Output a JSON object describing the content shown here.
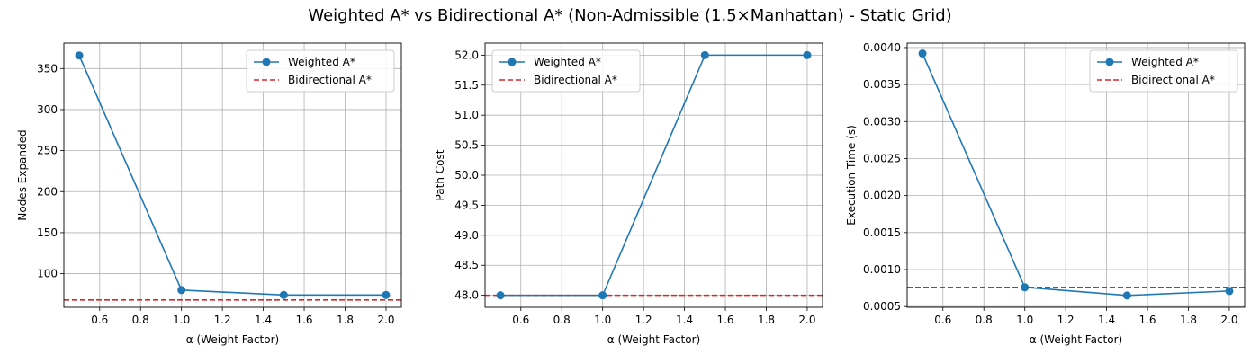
{
  "figure": {
    "title": "Weighted A* vs Bidirectional A* (Non-Admissible (1.5×Manhattan) - Static Grid)"
  },
  "colors": {
    "weighted": "#1f77b4",
    "bidirectional": "#d62728",
    "grid": "#b0b0b0"
  },
  "chart_data": [
    {
      "type": "line",
      "title": "",
      "xlabel": "α (Weight Factor)",
      "ylabel": "Nodes Expanded",
      "x": [
        0.5,
        1.0,
        1.5,
        2.0
      ],
      "xlim": [
        0.425,
        2.075
      ],
      "ylim": [
        59,
        381
      ],
      "xticks": [
        0.6,
        0.8,
        1.0,
        1.2,
        1.4,
        1.6,
        1.8,
        2.0
      ],
      "xtick_labels": [
        "0.6",
        "0.8",
        "1.0",
        "1.2",
        "1.4",
        "1.6",
        "1.8",
        "2.0"
      ],
      "yticks": [
        100,
        150,
        200,
        250,
        300,
        350
      ],
      "ytick_labels": [
        "100",
        "150",
        "200",
        "250",
        "300",
        "350"
      ],
      "grid": true,
      "legend_position": "upper-right",
      "series": [
        {
          "name": "Weighted A*",
          "style": "solid-marker",
          "values": [
            366,
            80,
            74,
            74
          ]
        },
        {
          "name": "Bidirectional A*",
          "style": "dashed-hline",
          "value": 68
        }
      ]
    },
    {
      "type": "line",
      "title": "",
      "xlabel": "α (Weight Factor)",
      "ylabel": "Path Cost",
      "x": [
        0.5,
        1.0,
        1.5,
        2.0
      ],
      "xlim": [
        0.425,
        2.075
      ],
      "ylim": [
        47.8,
        52.2
      ],
      "xticks": [
        0.6,
        0.8,
        1.0,
        1.2,
        1.4,
        1.6,
        1.8,
        2.0
      ],
      "xtick_labels": [
        "0.6",
        "0.8",
        "1.0",
        "1.2",
        "1.4",
        "1.6",
        "1.8",
        "2.0"
      ],
      "yticks": [
        48.0,
        48.5,
        49.0,
        49.5,
        50.0,
        50.5,
        51.0,
        51.5,
        52.0
      ],
      "ytick_labels": [
        "48.0",
        "48.5",
        "49.0",
        "49.5",
        "50.0",
        "50.5",
        "51.0",
        "51.5",
        "52.0"
      ],
      "grid": true,
      "legend_position": "upper-left",
      "series": [
        {
          "name": "Weighted A*",
          "style": "solid-marker",
          "values": [
            48.0,
            48.0,
            52.0,
            52.0
          ]
        },
        {
          "name": "Bidirectional A*",
          "style": "dashed-hline",
          "value": 48.0
        }
      ]
    },
    {
      "type": "line",
      "title": "",
      "xlabel": "α (Weight Factor)",
      "ylabel": "Execution Time (s)",
      "x": [
        0.5,
        1.0,
        1.5,
        2.0
      ],
      "xlim": [
        0.425,
        2.075
      ],
      "ylim": [
        0.00049,
        0.00406
      ],
      "xticks": [
        0.6,
        0.8,
        1.0,
        1.2,
        1.4,
        1.6,
        1.8,
        2.0
      ],
      "xtick_labels": [
        "0.6",
        "0.8",
        "1.0",
        "1.2",
        "1.4",
        "1.6",
        "1.8",
        "2.0"
      ],
      "yticks": [
        0.0005,
        0.001,
        0.0015,
        0.002,
        0.0025,
        0.003,
        0.0035,
        0.004
      ],
      "ytick_labels": [
        "0.0005",
        "0.0010",
        "0.0015",
        "0.0020",
        "0.0025",
        "0.0030",
        "0.0035",
        "0.0040"
      ],
      "grid": true,
      "legend_position": "upper-right",
      "series": [
        {
          "name": "Weighted A*",
          "style": "solid-marker",
          "values": [
            0.00392,
            0.00076,
            0.00065,
            0.00071
          ]
        },
        {
          "name": "Bidirectional A*",
          "style": "dashed-hline",
          "value": 0.00076
        }
      ]
    }
  ]
}
